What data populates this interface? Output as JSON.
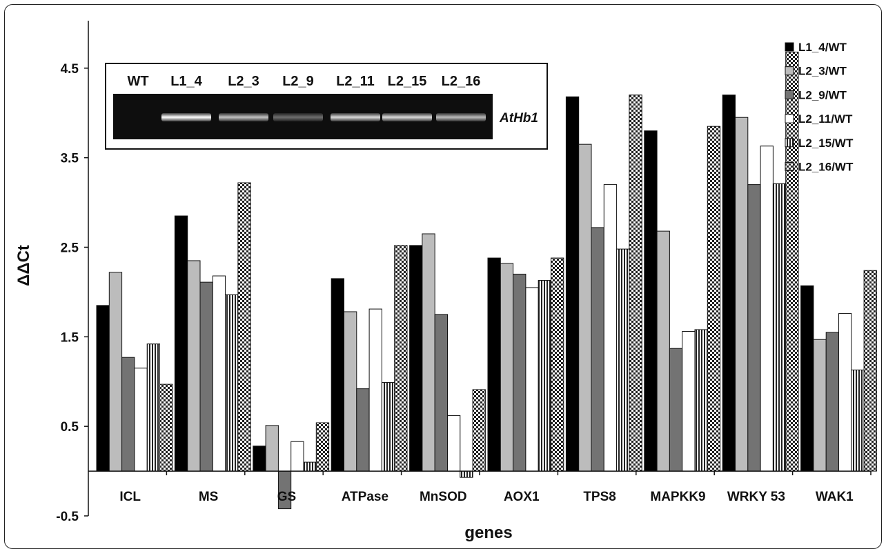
{
  "chart_data": {
    "type": "bar",
    "title": "",
    "xlabel": "genes",
    "ylabel": "ΔΔCt",
    "ylim": [
      -0.5,
      5.0
    ],
    "yticks": [
      "-0.5",
      "0.5",
      "1.5",
      "2.5",
      "3.5",
      "4.5"
    ],
    "ytick_values": [
      -0.5,
      0.5,
      1.5,
      2.5,
      3.5,
      4.5
    ],
    "categories": [
      "ICL",
      "MS",
      "GS",
      "ATPase",
      "MnSOD",
      "AOX1",
      "TPS8",
      "MAPKK9",
      "WRKY 53",
      "WAK1"
    ],
    "grid": false,
    "legend_position": "right",
    "series": [
      {
        "name": "L1_4/WT",
        "fill": "solid-black",
        "values": [
          1.85,
          2.85,
          0.28,
          2.15,
          2.52,
          2.38,
          4.18,
          3.8,
          4.2,
          2.07
        ]
      },
      {
        "name": "L2_3/WT",
        "fill": "light-gray",
        "values": [
          2.22,
          2.35,
          0.51,
          1.78,
          2.65,
          2.32,
          3.65,
          2.68,
          3.95,
          1.47
        ]
      },
      {
        "name": "L2_9/WT",
        "fill": "dark-gray",
        "values": [
          1.27,
          2.11,
          -0.42,
          0.92,
          1.75,
          2.2,
          2.72,
          1.37,
          3.2,
          1.55
        ]
      },
      {
        "name": "L2_11/WT",
        "fill": "white",
        "values": [
          1.15,
          2.18,
          0.33,
          1.81,
          0.62,
          2.05,
          3.2,
          1.56,
          3.63,
          1.76
        ]
      },
      {
        "name": "L2_15/WT",
        "fill": "vertical-stripes",
        "values": [
          1.42,
          1.97,
          0.1,
          0.99,
          -0.07,
          2.13,
          2.48,
          1.58,
          3.21,
          1.13
        ]
      },
      {
        "name": "L2_16/WT",
        "fill": "checkerboard",
        "values": [
          0.97,
          3.22,
          0.54,
          2.52,
          0.91,
          2.38,
          4.2,
          3.85,
          4.68,
          2.24
        ]
      }
    ]
  },
  "inset": {
    "lanes": [
      "WT",
      "L1_4",
      "L2_3",
      "L2_9",
      "L2_11",
      "L2_15",
      "L2_16"
    ],
    "band_intensity": [
      0.0,
      1.0,
      0.75,
      0.4,
      0.85,
      0.85,
      0.72
    ],
    "gene": "AtHb1"
  }
}
